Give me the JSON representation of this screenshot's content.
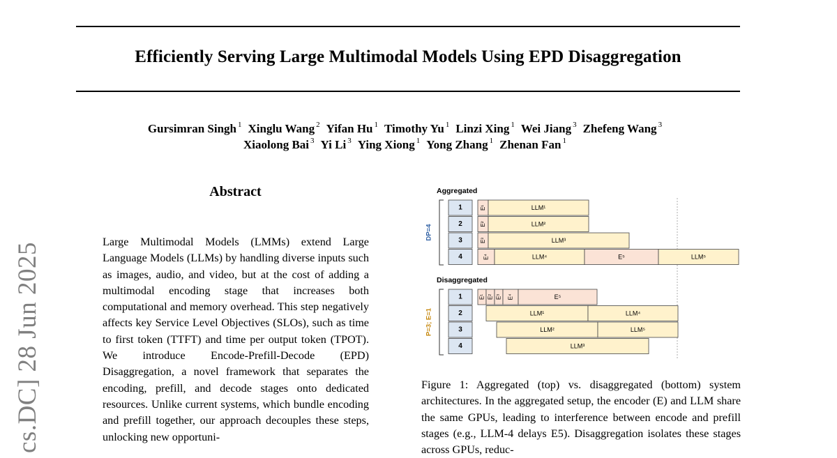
{
  "paper": {
    "title": "Efficiently Serving Large Multimodal Models Using EPD Disaggregation",
    "authors_line1": [
      {
        "name": "Gursimran Singh",
        "aff": "1"
      },
      {
        "name": "Xinglu Wang",
        "aff": "2"
      },
      {
        "name": "Yifan Hu",
        "aff": "1"
      },
      {
        "name": "Timothy Yu",
        "aff": "1"
      },
      {
        "name": "Linzi Xing",
        "aff": "1"
      },
      {
        "name": "Wei Jiang",
        "aff": "3"
      },
      {
        "name": "Zhefeng Wang",
        "aff": "3"
      }
    ],
    "authors_line2": [
      {
        "name": "Xiaolong Bai",
        "aff": "3"
      },
      {
        "name": "Yi Li",
        "aff": "3"
      },
      {
        "name": "Ying Xiong",
        "aff": "1"
      },
      {
        "name": "Yong Zhang",
        "aff": "1"
      },
      {
        "name": "Zhenan Fan",
        "aff": "1"
      }
    ],
    "side_stamp": "cs.DC]  28 Jun 2025",
    "abstract_heading": "Abstract",
    "abstract_text": "Large Multimodal Models (LMMs) extend Large Language Models (LLMs) by handling diverse inputs such as images, audio, and video, but at the cost of adding a multimodal encoding stage that increases both computational and memory overhead. This step negatively affects key Service Level Objectives (SLOs), such as time to first token (TTFT) and time per output token (TPOT). We introduce Encode-Prefill-Decode (EPD) Disaggregation, a novel framework that separates the encoding, prefill, and decode stages onto dedicated resources. Unlike current systems, which bundle encoding and prefill together, our approach decouples these steps, unlocking new opportuni-",
    "caption": "Figure 1: Aggregated (top) vs. disaggregated (bottom) system architectures. In the aggregated setup, the encoder (E) and LLM share the same GPUs, leading to interference between encode and prefill stages (e.g., LLM-4 delays E5). Disaggregation isolates these stages across GPUs, reduc-"
  },
  "figure": {
    "aggregated_label": "Aggregated",
    "disaggregated_label": "Disaggregated",
    "dp_label": "DP=4",
    "pe_label": "P=3; E=1",
    "gpu_ids": [
      "1",
      "2",
      "3",
      "4"
    ],
    "colors": {
      "gpu_fill": "#dce6f2",
      "llm_fill": "#fff2cc",
      "enc_fill": "#fbe3d6",
      "dp_color": "#2e5fa3",
      "pe_color": "#c5860a"
    },
    "aggregated_blocks": [
      {
        "row": 1,
        "kind": "E",
        "label": "E¹"
      },
      {
        "row": 1,
        "kind": "LLM",
        "label": "LLM¹"
      },
      {
        "row": 2,
        "kind": "E",
        "label": "E²"
      },
      {
        "row": 2,
        "kind": "LLM",
        "label": "LLM²"
      },
      {
        "row": 3,
        "kind": "E",
        "label": "E³"
      },
      {
        "row": 3,
        "kind": "LLM",
        "label": "LLM³"
      },
      {
        "row": 4,
        "kind": "E",
        "label": "E⁴"
      },
      {
        "row": 4,
        "kind": "LLM",
        "label": "LLM⁴"
      },
      {
        "row": 4,
        "kind": "E",
        "label": "E⁵"
      },
      {
        "row": 4,
        "kind": "LLM",
        "label": "LLM⁵"
      }
    ],
    "disaggregated_blocks": [
      {
        "row": 1,
        "kind": "E",
        "label": "E¹"
      },
      {
        "row": 1,
        "kind": "E",
        "label": "E²"
      },
      {
        "row": 1,
        "kind": "E",
        "label": "E³"
      },
      {
        "row": 1,
        "kind": "E",
        "label": "E⁴"
      },
      {
        "row": 1,
        "kind": "E",
        "label": "E⁵"
      },
      {
        "row": 2,
        "kind": "LLM",
        "label": "LLM¹"
      },
      {
        "row": 2,
        "kind": "LLM",
        "label": "LLM⁴"
      },
      {
        "row": 3,
        "kind": "LLM",
        "label": "LLM²"
      },
      {
        "row": 3,
        "kind": "LLM",
        "label": "LLM⁵"
      },
      {
        "row": 4,
        "kind": "LLM",
        "label": "LLM³"
      }
    ]
  }
}
